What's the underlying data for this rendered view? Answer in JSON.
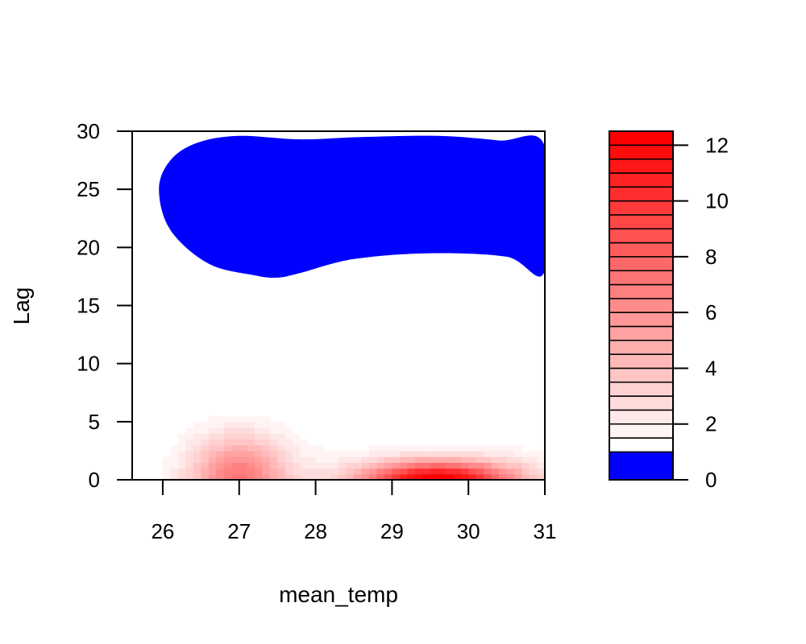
{
  "chart_data": {
    "type": "heatmap",
    "title": "",
    "xlabel": "mean_temp",
    "ylabel": "Lag",
    "xlim": [
      25.6,
      31
    ],
    "ylim": [
      0,
      30
    ],
    "x_ticks": [
      "26",
      "27",
      "28",
      "29",
      "30",
      "31"
    ],
    "y_ticks": [
      "0",
      "5",
      "10",
      "15",
      "20",
      "25",
      "30"
    ],
    "legend": {
      "position": "right",
      "ticks": [
        "0",
        "2",
        "4",
        "6",
        "8",
        "10",
        "12"
      ],
      "range": [
        0,
        12.5
      ],
      "levels": [
        0,
        1,
        1.5,
        2,
        2.5,
        3,
        3.5,
        4,
        4.5,
        5,
        5.5,
        6,
        6.5,
        7,
        7.5,
        8,
        8.5,
        9,
        9.5,
        10,
        10.5,
        11,
        11.5,
        12,
        12.5
      ],
      "below_one_color": "#0000ff",
      "max_color": "#ff0000"
    },
    "regions": [
      {
        "label": "below 1 (blue)",
        "range": [
          0,
          1
        ],
        "color": "#0000ff",
        "boundary": [
          [
            26.45,
            29.0
          ],
          [
            27.0,
            29.6
          ],
          [
            27.8,
            29.3
          ],
          [
            28.6,
            29.5
          ],
          [
            29.6,
            29.6
          ],
          [
            30.4,
            29.2
          ],
          [
            31.0,
            28.7
          ],
          [
            31.0,
            18.0
          ],
          [
            30.5,
            19.2
          ],
          [
            29.5,
            19.5
          ],
          [
            28.5,
            19.0
          ],
          [
            27.8,
            17.8
          ],
          [
            27.5,
            17.4
          ],
          [
            27.2,
            17.6
          ],
          [
            26.6,
            18.6
          ],
          [
            26.1,
            21.5
          ],
          [
            25.95,
            25.0
          ],
          [
            26.1,
            27.5
          ]
        ]
      }
    ],
    "hotspots": [
      {
        "label": "peak 1",
        "mean_temp": 27.0,
        "lag": 0,
        "value": 6.5,
        "spread_mean_temp": 0.6,
        "spread_lag": 3.5
      },
      {
        "label": "peak 2",
        "mean_temp": 29.6,
        "lag": 0,
        "value": 12.5,
        "spread_mean_temp": 1.0,
        "spread_lag": 1.6
      }
    ]
  }
}
